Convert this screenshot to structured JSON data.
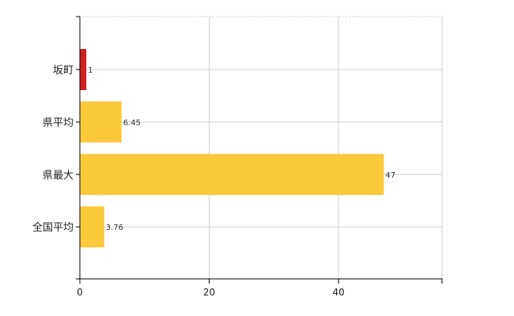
{
  "chart_data": {
    "type": "bar",
    "orientation": "horizontal",
    "categories": [
      "坂町",
      "県平均",
      "県最大",
      "全国平均"
    ],
    "values": [
      1,
      6.45,
      47,
      3.76
    ],
    "value_labels": [
      "1",
      "6.45",
      "47",
      "3.76"
    ],
    "xlim": [
      0,
      56
    ],
    "xticks": [
      0,
      20,
      40
    ],
    "grid": true,
    "colors": {
      "highlight": "#cc2222",
      "default": "#fcc83c"
    },
    "highlight_index": 0
  }
}
